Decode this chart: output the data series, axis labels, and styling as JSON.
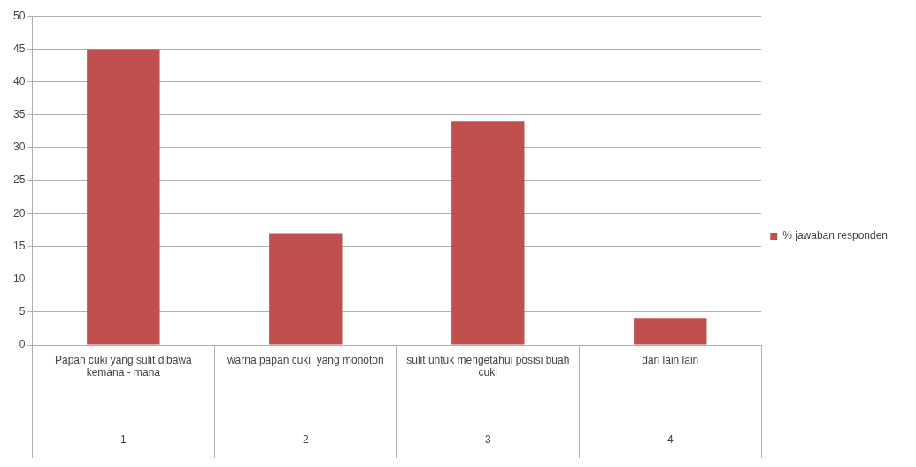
{
  "chart_data": {
    "type": "bar",
    "categories": [
      "Papan cuki yang sulit dibawa kemana - mana",
      "warna papan cuki  yang monoton",
      "sulit untuk mengetahui posisi buah cuki",
      "dan lain lain"
    ],
    "series": [
      {
        "name": "% jawaban responden",
        "color": "#c0504d",
        "values": [
          45,
          17,
          34,
          4
        ]
      }
    ],
    "annotations": [
      "1",
      "2",
      "3",
      "4"
    ],
    "ylim": [
      0,
      50
    ],
    "yticks": [
      0,
      5,
      10,
      15,
      20,
      25,
      30,
      35,
      40,
      45,
      50
    ],
    "grid": "y",
    "legend": "right"
  }
}
